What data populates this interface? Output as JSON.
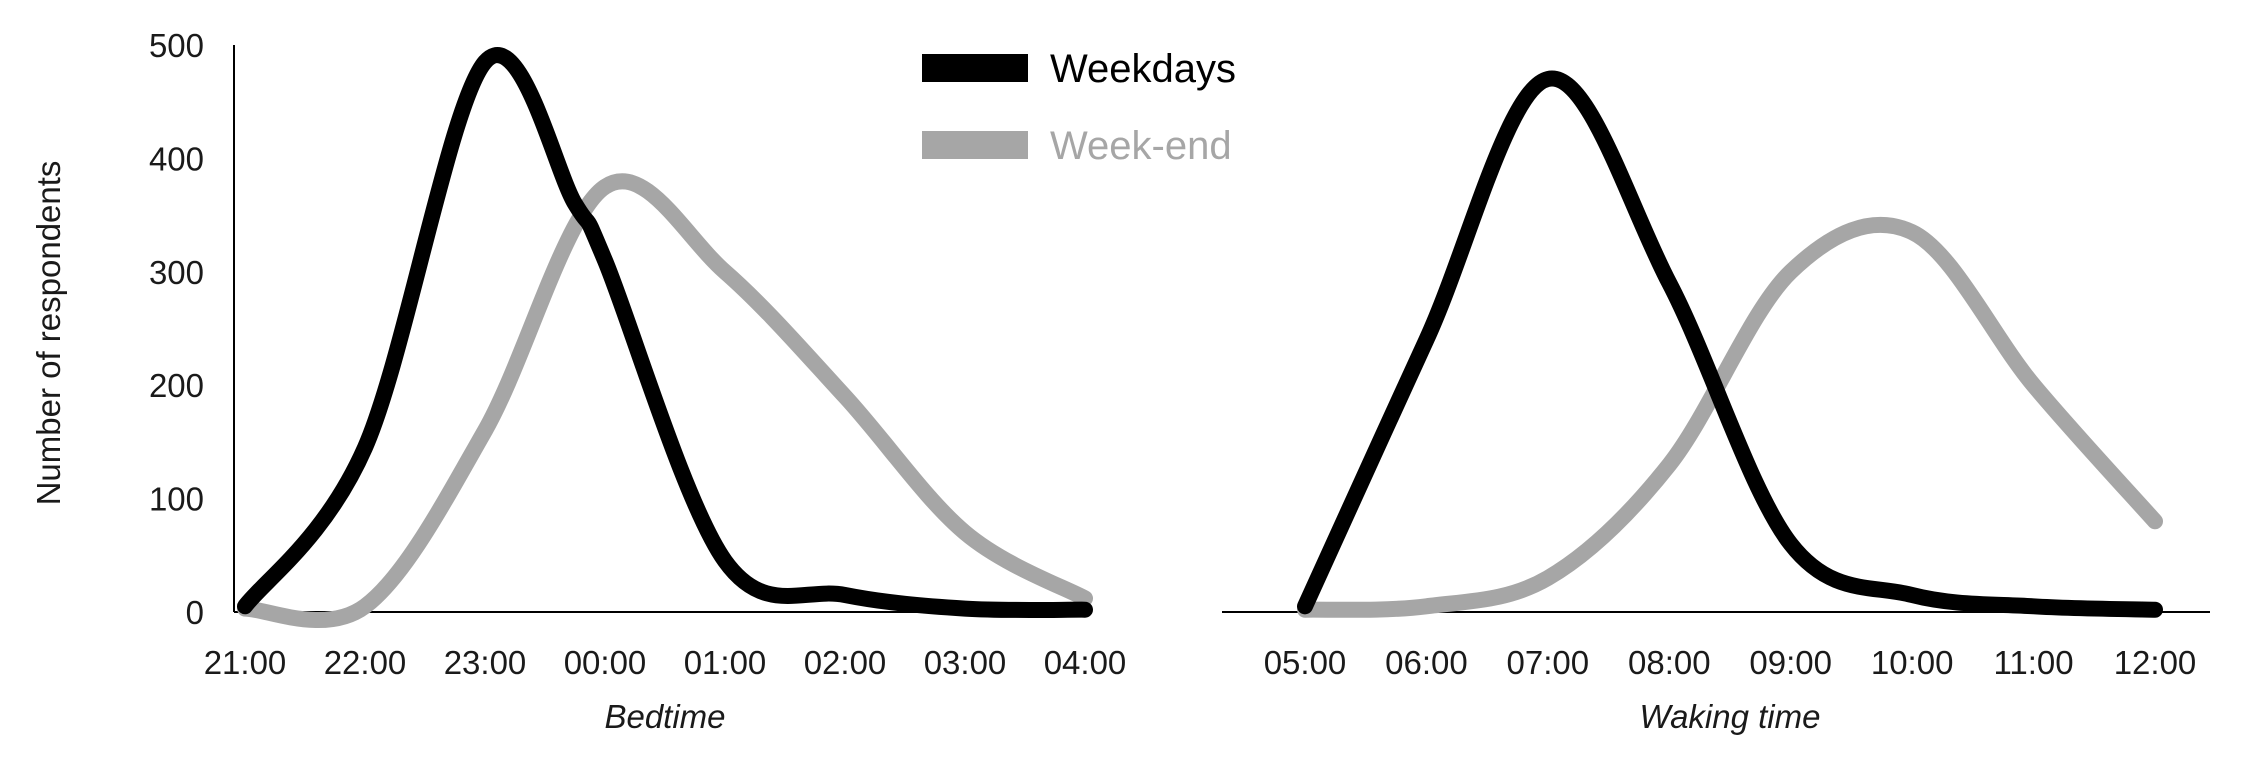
{
  "colors": {
    "weekdays": "#000000",
    "weekend": "#a6a6a6",
    "axis": "#000000"
  },
  "legend": {
    "placement": "top-center",
    "items": [
      {
        "label": "Weekdays",
        "color": "#000000"
      },
      {
        "label": "Week-end",
        "color": "#a6a6a6"
      }
    ]
  },
  "ylabel": "Number of respondents",
  "chart_data": [
    {
      "type": "line",
      "xlabel": "Bedtime",
      "ylabel": "Number of respondents",
      "ylim": [
        0,
        500
      ],
      "yticks": [
        "0",
        "100",
        "200",
        "300",
        "400",
        "500"
      ],
      "categories": [
        "21:00",
        "22:00",
        "23:00",
        "00:00",
        "01:00",
        "02:00",
        "03:00",
        "04:00"
      ],
      "grid": false,
      "series": [
        {
          "name": "Weekdays",
          "color": "#000000",
          "values": [
            [
              0,
              5
            ],
            [
              1,
              145
            ],
            [
              2,
              485
            ],
            [
              2.75,
              360
            ],
            [
              3,
              310
            ],
            [
              4,
              45
            ],
            [
              5,
              15
            ],
            [
              6,
              3
            ],
            [
              7,
              2
            ]
          ]
        },
        {
          "name": "Week-end",
          "color": "#a6a6a6",
          "values": [
            [
              0,
              3
            ],
            [
              1,
              5
            ],
            [
              2,
              160
            ],
            [
              3,
              375
            ],
            [
              4,
              300
            ],
            [
              5,
              190
            ],
            [
              6,
              70
            ],
            [
              7,
              12
            ]
          ]
        }
      ]
    },
    {
      "type": "line",
      "xlabel": "Waking time",
      "ylabel": "",
      "ylim": [
        0,
        500
      ],
      "categories": [
        "05:00",
        "06:00",
        "07:00",
        "08:00",
        "09:00",
        "10:00",
        "11:00",
        "12:00"
      ],
      "grid": false,
      "series": [
        {
          "name": "Weekdays",
          "color": "#000000",
          "values": [
            [
              0,
              5
            ],
            [
              1,
              240
            ],
            [
              2,
              470
            ],
            [
              3,
              290
            ],
            [
              4,
              60
            ],
            [
              5,
              15
            ],
            [
              6,
              5
            ],
            [
              7,
              2
            ]
          ]
        },
        {
          "name": "Week-end",
          "color": "#a6a6a6",
          "values": [
            [
              0,
              2
            ],
            [
              1,
              5
            ],
            [
              2,
              30
            ],
            [
              3,
              130
            ],
            [
              4,
              300
            ],
            [
              5,
              335
            ],
            [
              6,
              200
            ],
            [
              7,
              80
            ]
          ]
        }
      ]
    }
  ]
}
